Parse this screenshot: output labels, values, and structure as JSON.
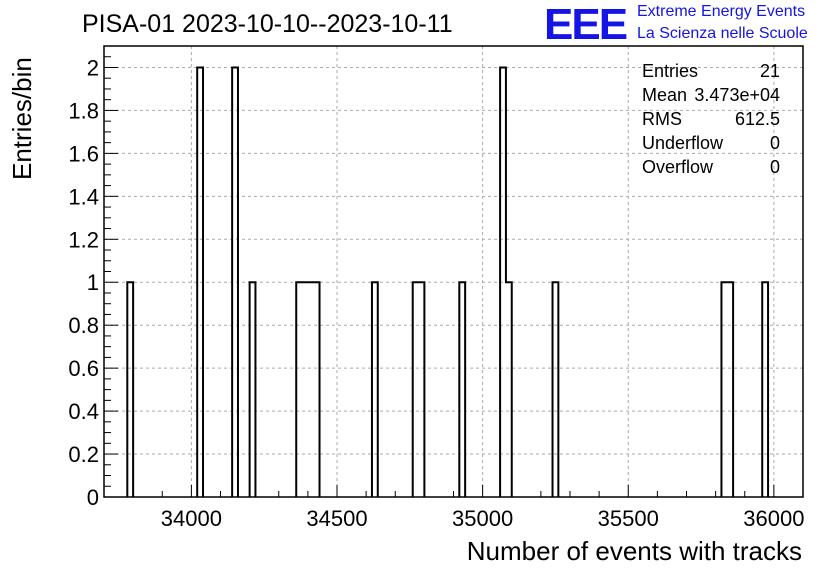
{
  "header": {
    "title": "PISA-01 2023-10-10--2023-10-11",
    "logo_text": "EEE",
    "subtitle_line1": "Extreme Energy Events",
    "subtitle_line2": "La Scienza nelle Scuole",
    "logo_color": "#1414e6"
  },
  "stats": {
    "entries_label": "Entries",
    "entries_value": "21",
    "mean_label": "Mean",
    "mean_value": "3.473e+04",
    "rms_label": "RMS",
    "rms_value": "612.5",
    "underflow_label": "Underflow",
    "underflow_value": "0",
    "overflow_label": "Overflow",
    "overflow_value": "0"
  },
  "chart_data": {
    "type": "bar",
    "style": "step-histogram",
    "xlabel": "Number of events with tracks",
    "ylabel": "Entries/bin",
    "xlim": [
      33700,
      36100
    ],
    "ylim": [
      0,
      2.1
    ],
    "bin_width": 20,
    "grid": true,
    "x_ticks": [
      34000,
      34500,
      35000,
      35500,
      36000
    ],
    "y_ticks": [
      0,
      0.2,
      0.4,
      0.6,
      0.8,
      1,
      1.2,
      1.4,
      1.6,
      1.8,
      2
    ],
    "y_tick_labels": [
      "0",
      "0.2",
      "0.4",
      "0.6",
      "0.8",
      "1",
      "1.2",
      "1.4",
      "1.6",
      "1.8",
      "2"
    ],
    "bins": [
      {
        "x": 33780,
        "value": 1
      },
      {
        "x": 34020,
        "value": 2
      },
      {
        "x": 34140,
        "value": 2
      },
      {
        "x": 34200,
        "value": 1
      },
      {
        "x": 34360,
        "value": 1
      },
      {
        "x": 34380,
        "value": 1
      },
      {
        "x": 34400,
        "value": 1
      },
      {
        "x": 34420,
        "value": 1
      },
      {
        "x": 34620,
        "value": 1
      },
      {
        "x": 34760,
        "value": 1
      },
      {
        "x": 34780,
        "value": 1
      },
      {
        "x": 34920,
        "value": 1
      },
      {
        "x": 35060,
        "value": 2
      },
      {
        "x": 35080,
        "value": 1
      },
      {
        "x": 35240,
        "value": 1
      },
      {
        "x": 35820,
        "value": 1
      },
      {
        "x": 35840,
        "value": 1
      },
      {
        "x": 35960,
        "value": 1
      }
    ]
  }
}
